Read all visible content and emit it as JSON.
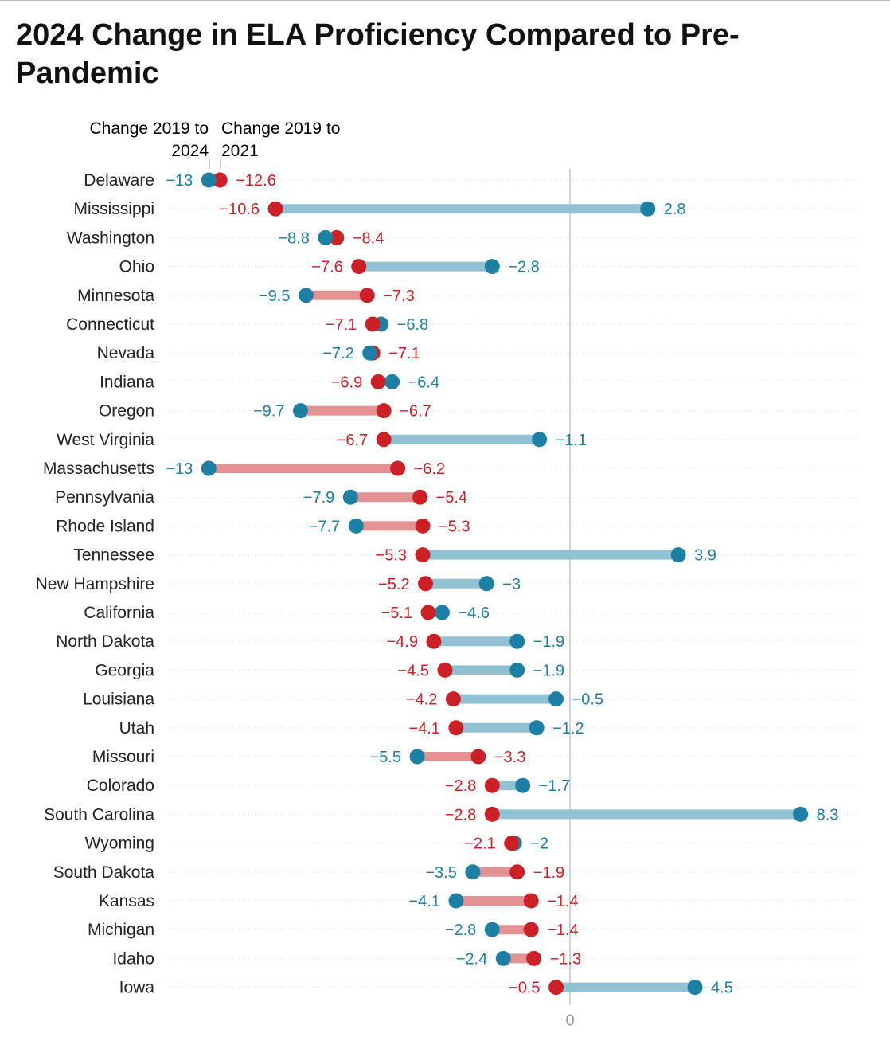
{
  "title": "2024 Change in ELA Proficiency Compared to Pre-Pandemic",
  "legend": {
    "series_2024": {
      "line1": "Change 2019 to",
      "line2": "2024"
    },
    "series_2021": {
      "line1": "Change 2019 to",
      "line2": "2021"
    }
  },
  "colors": {
    "change_2019_2024": "#1c7fa3",
    "change_2019_2021": "#cc2027",
    "bar_2024": "#92c1d4",
    "bar_2021": "#e39193",
    "axis": "#aaaaaa",
    "grid": "#dddddd",
    "text": "#222222"
  },
  "chart_data": {
    "type": "dumbbell",
    "x_zero_label": "0",
    "xlim": [
      -14.5,
      9.5
    ],
    "categories": [
      "Delaware",
      "Mississippi",
      "Washington",
      "Ohio",
      "Minnesota",
      "Connecticut",
      "Nevada",
      "Indiana",
      "Oregon",
      "West Virginia",
      "Massachusetts",
      "Pennsylvania",
      "Rhode Island",
      "Tennessee",
      "New Hampshire",
      "California",
      "North Dakota",
      "Georgia",
      "Louisiana",
      "Utah",
      "Missouri",
      "Colorado",
      "South Carolina",
      "Wyoming",
      "South Dakota",
      "Kansas",
      "Michigan",
      "Idaho",
      "Iowa"
    ],
    "series": [
      {
        "name": "Change 2019 to 2024",
        "values": [
          -13,
          2.8,
          -8.8,
          -2.8,
          -9.5,
          -6.8,
          -7.2,
          -6.4,
          -9.7,
          -1.1,
          -13,
          -7.9,
          -7.7,
          3.9,
          -3,
          -4.6,
          -1.9,
          -1.9,
          -0.5,
          -1.2,
          -5.5,
          -1.7,
          8.3,
          -2,
          -3.5,
          -4.1,
          -2.8,
          -2.4,
          4.5
        ],
        "labels": [
          "−13",
          "2.8",
          "−8.8",
          "−2.8",
          "−9.5",
          "−6.8",
          "−7.2",
          "−6.4",
          "−9.7",
          "−1.1",
          "−13",
          "−7.9",
          "−7.7",
          "3.9",
          "−3",
          "−4.6",
          "−1.9",
          "−1.9",
          "−0.5",
          "−1.2",
          "−5.5",
          "−1.7",
          "8.3",
          "−2",
          "−3.5",
          "−4.1",
          "−2.8",
          "−2.4",
          "4.5"
        ]
      },
      {
        "name": "Change 2019 to 2021",
        "values": [
          -12.6,
          -10.6,
          -8.4,
          -7.6,
          -7.3,
          -7.1,
          -7.1,
          -6.9,
          -6.7,
          -6.7,
          -6.2,
          -5.4,
          -5.3,
          -5.3,
          -5.2,
          -5.1,
          -4.9,
          -4.5,
          -4.2,
          -4.1,
          -3.3,
          -2.8,
          -2.8,
          -2.1,
          -1.9,
          -1.4,
          -1.4,
          -1.3,
          -0.5
        ],
        "labels": [
          "−12.6",
          "−10.6",
          "−8.4",
          "−7.6",
          "−7.3",
          "−7.1",
          "−7.1",
          "−6.9",
          "−6.7",
          "−6.7",
          "−6.2",
          "−5.4",
          "−5.3",
          "−5.3",
          "−5.2",
          "−5.1",
          "−4.9",
          "−4.5",
          "−4.2",
          "−4.1",
          "−3.3",
          "−2.8",
          "−2.8",
          "−2.1",
          "−1.9",
          "−1.4",
          "−1.4",
          "−1.3",
          "−0.5"
        ]
      }
    ]
  }
}
